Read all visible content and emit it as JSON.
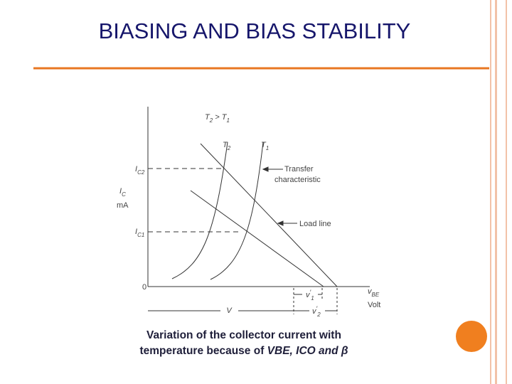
{
  "title": "BIASING AND BIAS STABILITY",
  "diagram": {
    "labels": {
      "temp_relation": [
        {
          "base": "T",
          "sub": "2"
        },
        {
          "base": " > T",
          "sub": "1"
        }
      ],
      "curve_t2": [
        {
          "base": "T",
          "sub": "2"
        }
      ],
      "curve_t1": [
        {
          "base": "T",
          "sub": "1"
        }
      ],
      "transfer": [
        {
          "base": "Transfer"
        }
      ],
      "characteristic": [
        {
          "base": "characteristic"
        }
      ],
      "load_line": [
        {
          "base": "Load line"
        }
      ],
      "ic2": [
        {
          "base": "I",
          "sub": "C2"
        }
      ],
      "ic1": [
        {
          "base": "I",
          "sub": "C1"
        }
      ],
      "ic_axis": [
        {
          "base": "I",
          "sub": "C"
        }
      ],
      "ma": [
        {
          "base": "mA"
        }
      ],
      "origin": [
        {
          "base": "0"
        }
      ],
      "vbe": [
        {
          "base": "v",
          "sub": "BE"
        }
      ],
      "volt": [
        {
          "base": "Volt"
        }
      ],
      "v": [
        {
          "base": "V"
        }
      ],
      "v1": [
        {
          "base": "v",
          "sub": "1",
          "sup": "′"
        }
      ],
      "v2": [
        {
          "base": "v",
          "sub": "2",
          "sup": "′"
        }
      ]
    }
  },
  "caption": {
    "line1": "Variation of the collector current with",
    "line2": {
      "text": "temperature because of ",
      "emphasis": "VBE, ICO and β"
    }
  }
}
